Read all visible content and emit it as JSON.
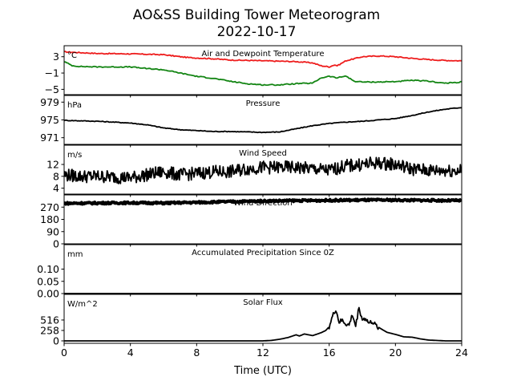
{
  "figure": {
    "title": "AO&SS Building Tower Meteorogram",
    "subtitle": "2022-10-17",
    "xlabel": "Time (UTC)"
  },
  "colors": {
    "temperature": "#ee1c1c",
    "dewpoint": "#138513",
    "default": "#000000"
  },
  "chart_data": [
    {
      "type": "line",
      "title": "Air and Dewpoint Temperature",
      "ylabel": "°C",
      "xlim": [
        0,
        24
      ],
      "ylim": [
        -6.3,
        5.7
      ],
      "yticks": [
        3,
        -1,
        -5
      ],
      "ytick_labels": [
        "3",
        "−1",
        "−5"
      ],
      "series": [
        {
          "name": "",
          "color": "#ee1c1c",
          "x": [
            0,
            1,
            2,
            4,
            6,
            7,
            7.5,
            9,
            10,
            12,
            13,
            14,
            15,
            15.5,
            16,
            16.3,
            16.5,
            17,
            18,
            19,
            20,
            21,
            22,
            23,
            24
          ],
          "y": [
            4.2,
            4.0,
            3.8,
            3.7,
            3.5,
            3.0,
            2.8,
            2.5,
            2.2,
            2.0,
            1.9,
            1.8,
            1.5,
            0.8,
            0.5,
            1.0,
            0.8,
            2.0,
            3.0,
            3.2,
            3.0,
            2.6,
            2.3,
            2.1,
            2.0
          ]
        },
        {
          "name": "",
          "color": "#138513",
          "x": [
            0,
            0.5,
            1,
            2,
            4,
            5,
            6,
            7,
            8,
            9,
            10,
            11,
            12,
            13,
            14,
            15,
            15.5,
            16,
            16.5,
            17,
            17.5,
            18,
            19,
            20,
            21,
            22,
            23,
            24
          ],
          "y": [
            1.8,
            0.8,
            0.6,
            0.5,
            0.5,
            0.1,
            -0.2,
            -1.0,
            -1.8,
            -2.3,
            -3.0,
            -3.6,
            -3.9,
            -3.9,
            -3.6,
            -3.5,
            -2.2,
            -1.8,
            -2.2,
            -1.7,
            -3.0,
            -3.2,
            -3.2,
            -3.1,
            -2.8,
            -3.0,
            -3.5,
            -3.2
          ]
        }
      ]
    },
    {
      "type": "line",
      "title": "Pressure",
      "ylabel": "hPa",
      "xlim": [
        0,
        24
      ],
      "ylim": [
        969.5,
        980.5
      ],
      "yticks": [
        979,
        975,
        971
      ],
      "ytick_labels": [
        "979",
        "975",
        "971"
      ],
      "series": [
        {
          "name": "",
          "color": "#000000",
          "x": [
            0,
            1,
            2,
            3,
            4,
            5,
            6,
            7,
            8,
            9,
            10,
            11,
            12,
            13,
            14,
            15,
            16,
            17,
            18,
            19,
            20,
            21,
            22,
            23,
            24
          ],
          "y": [
            974.9,
            974.8,
            974.7,
            974.5,
            974.3,
            973.9,
            973.2,
            972.8,
            972.6,
            972.4,
            972.4,
            972.3,
            972.2,
            972.3,
            973.0,
            973.7,
            974.2,
            974.5,
            974.7,
            975.0,
            975.3,
            976.0,
            976.8,
            977.4,
            977.8
          ]
        }
      ]
    },
    {
      "type": "line",
      "title": "Wind Speed",
      "ylabel": "m/s",
      "xlim": [
        0,
        24
      ],
      "ylim": [
        2,
        18.5
      ],
      "yticks": [
        12,
        8,
        4
      ],
      "ytick_labels": [
        "12",
        "8",
        "4"
      ],
      "series": [
        {
          "name": "",
          "color": "#000000",
          "x": [
            0,
            1,
            2,
            3,
            4,
            5,
            6,
            7,
            8,
            9,
            10,
            11,
            12,
            13,
            14,
            15,
            16,
            17,
            18,
            19,
            20,
            21,
            22,
            23,
            24
          ],
          "y": [
            8.5,
            8.0,
            8.0,
            7.8,
            7.5,
            8.5,
            9.5,
            8.5,
            9.0,
            9.5,
            9.5,
            10.5,
            11.0,
            11.0,
            11.0,
            10.5,
            10.0,
            11.5,
            12.0,
            12.5,
            12.0,
            10.5,
            10.0,
            10.0,
            10.0
          ]
        }
      ]
    },
    {
      "type": "scatter",
      "title": "Wind Direction",
      "ylabel": "",
      "xlim": [
        0,
        24
      ],
      "ylim": [
        0,
        360
      ],
      "yticks": [
        270,
        180,
        90,
        0
      ],
      "ytick_labels": [
        "270",
        "180",
        "90",
        "0"
      ],
      "series": [
        {
          "name": "",
          "color": "#000000",
          "x": [
            0,
            2,
            4,
            6,
            8,
            10,
            12,
            14,
            16,
            18,
            20,
            22,
            24
          ],
          "y": [
            298,
            300,
            302,
            300,
            305,
            310,
            315,
            318,
            320,
            322,
            322,
            320,
            318
          ]
        }
      ]
    },
    {
      "type": "line",
      "title": "Accumulated Precipitation Since 0Z",
      "ylabel": "mm",
      "xlim": [
        0,
        24
      ],
      "ylim": [
        0,
        0.2
      ],
      "yticks": [
        0.1,
        0.05,
        0.0
      ],
      "ytick_labels": [
        "0.10",
        "0.05",
        "0.00"
      ],
      "series": [
        {
          "name": "",
          "color": "#000000",
          "x": [
            0,
            24
          ],
          "y": [
            0,
            0
          ]
        }
      ]
    },
    {
      "type": "line",
      "title": "Solar Flux",
      "ylabel": "W/m^2",
      "xlim": [
        0,
        24
      ],
      "ylim": [
        -60,
        1150
      ],
      "yticks": [
        516,
        258,
        0
      ],
      "ytick_labels": [
        "516",
        "258",
        "0"
      ],
      "series": [
        {
          "name": "",
          "color": "#000000",
          "x": [
            0,
            12.0,
            12.5,
            13,
            13.5,
            14,
            14.2,
            14.5,
            15,
            15.5,
            15.8,
            16,
            16.2,
            16.4,
            16.6,
            16.8,
            17,
            17.2,
            17.4,
            17.6,
            17.8,
            18,
            18.2,
            18.4,
            18.6,
            18.8,
            19,
            19.5,
            20,
            20.5,
            21,
            21.5,
            22,
            22.5,
            23,
            24
          ],
          "y": [
            0,
            0,
            10,
            40,
            80,
            150,
            120,
            170,
            130,
            200,
            260,
            350,
            600,
            780,
            460,
            500,
            420,
            380,
            650,
            360,
            830,
            520,
            560,
            430,
            480,
            380,
            330,
            210,
            160,
            100,
            90,
            50,
            20,
            10,
            0,
            0
          ]
        }
      ]
    }
  ]
}
